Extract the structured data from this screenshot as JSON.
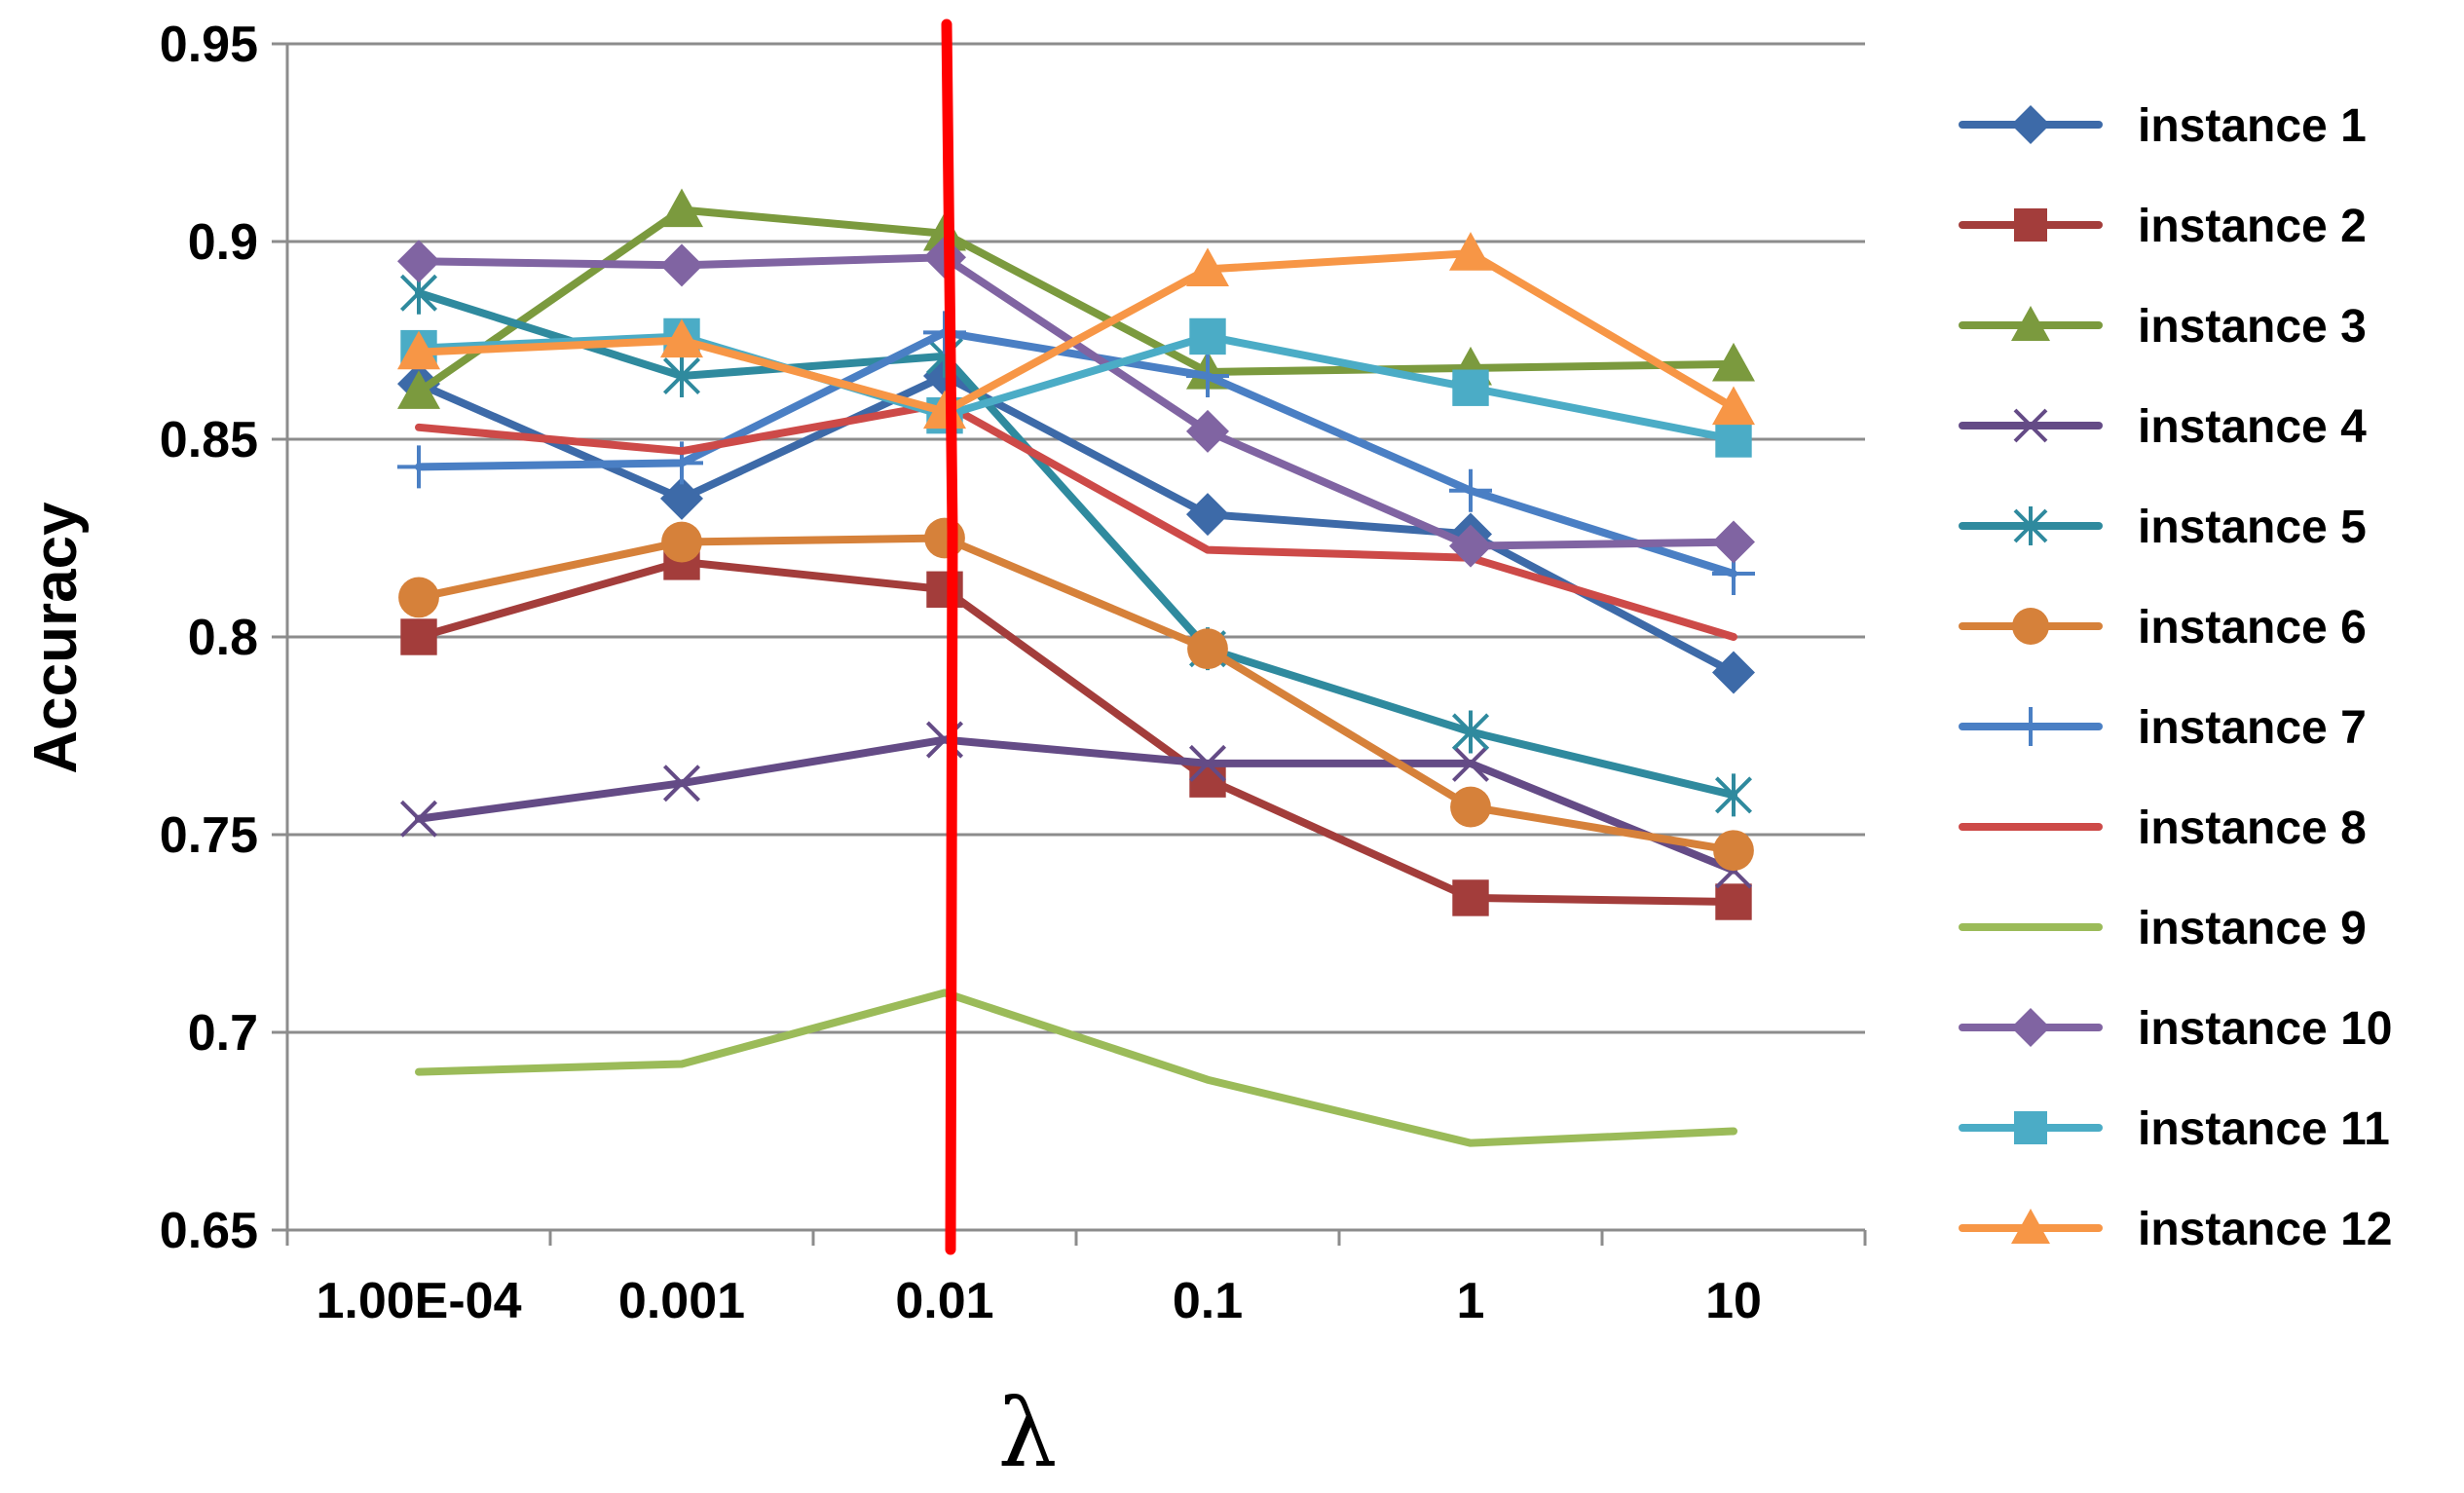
{
  "chart_data": {
    "type": "line",
    "title": "",
    "xlabel": "λ",
    "ylabel": "Accuracy",
    "categories": [
      "1.00E-04",
      "0.001",
      "0.01",
      "0.1",
      "1",
      "10"
    ],
    "ylim": [
      0.65,
      0.95
    ],
    "yticks": [
      "0.65",
      "0.7",
      "0.75",
      "0.8",
      "0.85",
      "0.9",
      "0.95"
    ],
    "grid": true,
    "legend_position": "right",
    "reference_line": {
      "category": "0.01",
      "color": "#ff0000"
    },
    "series": [
      {
        "name": "instance 1",
        "color": "#3d6aa8",
        "marker": "diamond",
        "values": [
          0.864,
          0.835,
          0.866,
          0.831,
          0.826,
          0.791
        ]
      },
      {
        "name": "instance 2",
        "color": "#a33d3b",
        "marker": "square",
        "values": [
          0.8,
          0.819,
          0.812,
          0.764,
          0.734,
          0.733
        ]
      },
      {
        "name": "instance 3",
        "color": "#7b9a3e",
        "marker": "triangle",
        "values": [
          0.862,
          0.908,
          0.902,
          0.867,
          0.868,
          0.869
        ]
      },
      {
        "name": "instance 4",
        "color": "#644b86",
        "marker": "x",
        "values": [
          0.754,
          0.763,
          0.774,
          0.768,
          0.768,
          0.741
        ]
      },
      {
        "name": "instance 5",
        "color": "#2f8a9e",
        "marker": "star",
        "values": [
          0.887,
          0.866,
          0.871,
          0.797,
          0.776,
          0.76
        ]
      },
      {
        "name": "instance 6",
        "color": "#d6813a",
        "marker": "circle",
        "values": [
          0.81,
          0.824,
          0.825,
          0.797,
          0.757,
          0.746
        ]
      },
      {
        "name": "instance 7",
        "color": "#4a7fc4",
        "marker": "plus",
        "values": [
          0.843,
          0.844,
          0.877,
          0.866,
          0.837,
          0.816
        ]
      },
      {
        "name": "instance 8",
        "color": "#cd4a48",
        "marker": "none",
        "values": [
          0.853,
          0.847,
          0.859,
          0.822,
          0.82,
          0.8
        ]
      },
      {
        "name": "instance 9",
        "color": "#9bbb59",
        "marker": "none",
        "values": [
          0.69,
          0.692,
          0.71,
          0.688,
          0.672,
          0.675
        ]
      },
      {
        "name": "instance 10",
        "color": "#8064a2",
        "marker": "diamond",
        "values": [
          0.895,
          0.894,
          0.896,
          0.852,
          0.823,
          0.824
        ]
      },
      {
        "name": "instance 11",
        "color": "#4bacc6",
        "marker": "square",
        "values": [
          0.873,
          0.876,
          0.856,
          0.876,
          0.863,
          0.85
        ]
      },
      {
        "name": "instance 12",
        "color": "#f79646",
        "marker": "triangle",
        "values": [
          0.872,
          0.875,
          0.857,
          0.893,
          0.897,
          0.858
        ]
      }
    ]
  }
}
